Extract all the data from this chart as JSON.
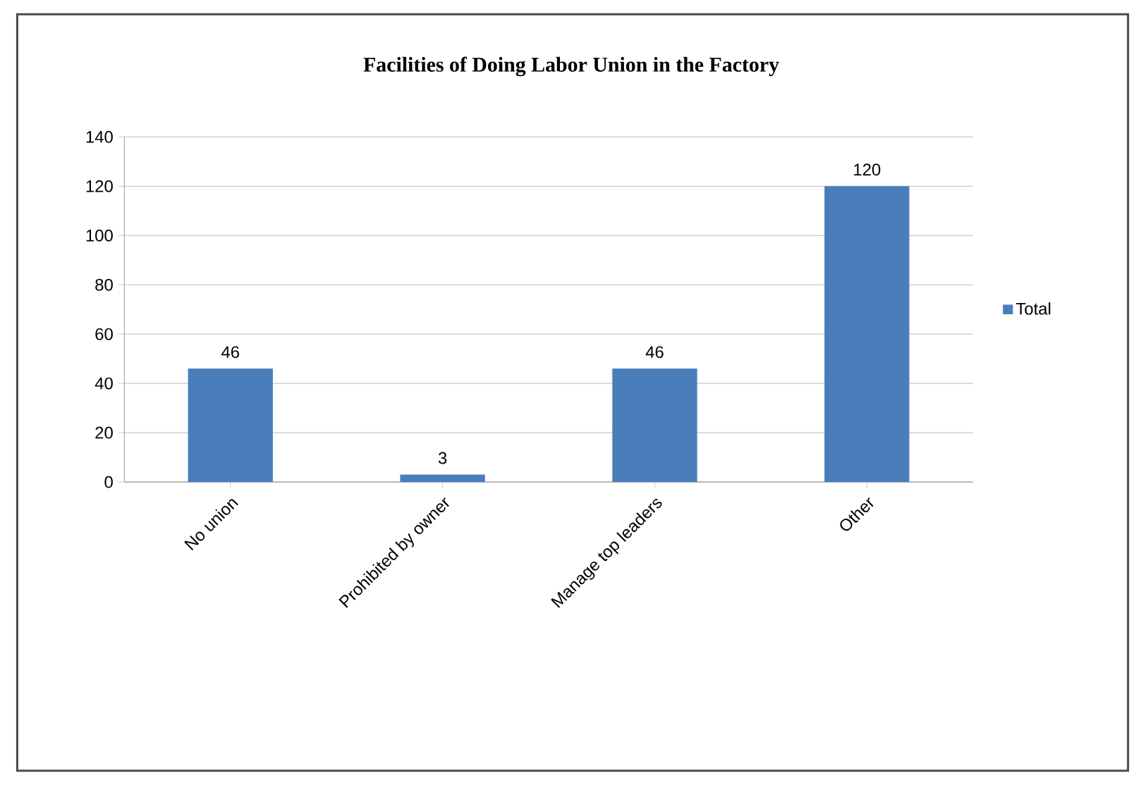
{
  "chart_data": {
    "type": "bar",
    "title": "Facilities of Doing Labor Union in the Factory",
    "categories": [
      "No union",
      "Prohibited by owner",
      "Manage top leaders",
      "Other"
    ],
    "series": [
      {
        "name": "Total",
        "color": "#4a7ebb",
        "values": [
          46,
          3,
          46,
          120
        ]
      }
    ],
    "ylim": [
      0,
      140
    ],
    "yticks": [
      0,
      20,
      40,
      60,
      80,
      100,
      120,
      140
    ],
    "grid": "y",
    "legend": "right",
    "data_labels": true
  }
}
